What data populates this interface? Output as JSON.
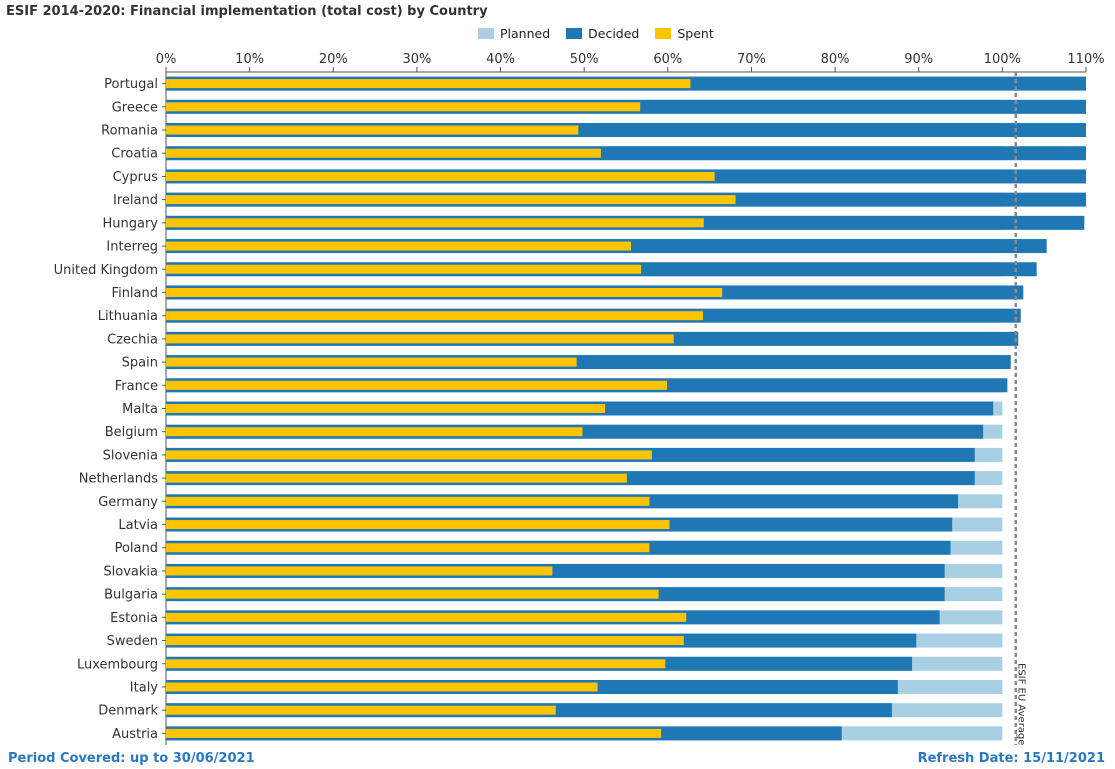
{
  "chart_data": {
    "type": "bar",
    "orientation": "horizontal",
    "title": "ESIF 2014-2020: Financial implementation (total cost) by Country",
    "categories": [
      "Portugal",
      "Greece",
      "Romania",
      "Croatia",
      "Cyprus",
      "Ireland",
      "Hungary",
      "Interreg",
      "United Kingdom",
      "Finland",
      "Lithuania",
      "Czechia",
      "Spain",
      "France",
      "Malta",
      "Belgium",
      "Slovenia",
      "Netherlands",
      "Germany",
      "Latvia",
      "Poland",
      "Slovakia",
      "Bulgaria",
      "Estonia",
      "Sweden",
      "Luxembourg",
      "Italy",
      "Denmark",
      "Austria"
    ],
    "series": [
      {
        "name": "Planned",
        "color": "#a8cfe3",
        "values": [
          100,
          100,
          100,
          100,
          100,
          100,
          100,
          100,
          100,
          100,
          100,
          100,
          100,
          100,
          100,
          100,
          100,
          100,
          100,
          100,
          100,
          100,
          100,
          100,
          100,
          100,
          100,
          100,
          100
        ]
      },
      {
        "name": "Decided",
        "color": "#1f77b4",
        "values": [
          110,
          110,
          110,
          110,
          110,
          110,
          109.8,
          105.3,
          104.1,
          102.5,
          102.2,
          101.9,
          101,
          100.6,
          98.9,
          97.7,
          96.7,
          96.7,
          94.7,
          94,
          93.8,
          93.1,
          93.1,
          92.5,
          89.7,
          89.2,
          87.5,
          86.8,
          80.8
        ]
      },
      {
        "name": "Spent",
        "color": "#ffc400",
        "values": [
          62.7,
          56.7,
          49.3,
          52,
          65.6,
          68.1,
          64.3,
          55.6,
          56.8,
          66.5,
          64.2,
          60.7,
          49.1,
          59.9,
          52.5,
          49.8,
          58.1,
          55.1,
          57.8,
          60.2,
          57.8,
          46.2,
          58.9,
          62.2,
          61.9,
          59.7,
          51.6,
          46.6,
          59.2
        ]
      }
    ],
    "xlim": [
      0,
      110
    ],
    "xticks": [
      "0%",
      "10%",
      "20%",
      "30%",
      "40%",
      "50%",
      "60%",
      "70%",
      "80%",
      "90%",
      "100%",
      "110%"
    ],
    "reference_line": {
      "value": 101.6,
      "label": "ESIF EU Average"
    },
    "legend_position": "top"
  },
  "footer": {
    "period": "Period Covered: up to 30/06/2021",
    "refresh": "Refresh Date: 15/11/2021"
  }
}
